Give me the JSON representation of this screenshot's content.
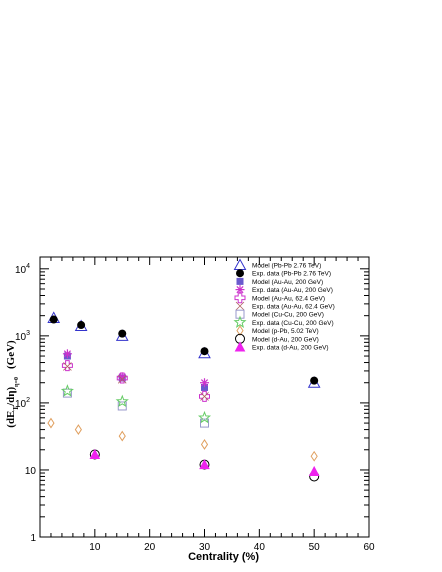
{
  "chart_data": {
    "type": "scatter",
    "xlabel": "Centrality (%)",
    "ylabel": "(dE",
    "ylabel_sub": "T",
    "ylabel_mid": "/dη)",
    "ylabel_sub2": "η=0",
    "ylabel_unit": "(GeV)",
    "xlim": [
      0,
      60
    ],
    "ylim": [
      1,
      15000
    ],
    "yscale": "log",
    "x_ticks": [
      "10",
      "20",
      "30",
      "40",
      "50",
      "60"
    ],
    "y_ticks": [
      {
        "base": "1",
        "exp": ""
      },
      {
        "base": "10",
        "exp": ""
      },
      {
        "base": "10",
        "exp": "2"
      },
      {
        "base": "10",
        "exp": "3"
      },
      {
        "base": "10",
        "exp": "4"
      }
    ],
    "legend_position": "top-right",
    "series": [
      {
        "name": "Model (Pb-Pb 2.76 TeV)",
        "marker": "triangle-open",
        "color": "#3333cc",
        "x": [
          2.5,
          7.5,
          15,
          30,
          50
        ],
        "y": [
          1850,
          1400,
          1000,
          550,
          200
        ]
      },
      {
        "name": "Exp. data (Pb-Pb 2.76 TeV)",
        "marker": "circle-filled",
        "color": "#000000",
        "x": [
          2.5,
          7.5,
          15,
          30,
          50
        ],
        "y": [
          1750,
          1450,
          1080,
          590,
          215
        ]
      },
      {
        "name": "Model (Au-Au, 200 GeV)",
        "marker": "square-filled",
        "color": "#6a5acd",
        "x": [
          5,
          15,
          30
        ],
        "y": [
          500,
          235,
          170
        ]
      },
      {
        "name": "Exp. data (Au-Au, 200 GeV)",
        "marker": "star-x",
        "color": "#cc33cc",
        "x": [
          5,
          15,
          30
        ],
        "y": [
          540,
          245,
          200
        ]
      },
      {
        "name": "Model (Au-Au, 62.4 GeV)",
        "marker": "cross-open",
        "color": "#cc33cc",
        "x": [
          5,
          15,
          30
        ],
        "y": [
          360,
          235,
          125
        ]
      },
      {
        "name": "Exp. data (Au-Au, 62.4 GeV)",
        "marker": "x-thin",
        "color": "#b06060",
        "x": [
          5,
          15,
          30
        ],
        "y": [
          350,
          225,
          125
        ]
      },
      {
        "name": "Model (Cu-Cu, 200 GeV)",
        "marker": "square-open",
        "color": "#9999cc",
        "x": [
          5,
          15,
          30
        ],
        "y": [
          140,
          90,
          50
        ]
      },
      {
        "name": "Exp. data (Cu-Cu, 200 GeV)",
        "marker": "star-open",
        "color": "#66cc66",
        "x": [
          5,
          15,
          30
        ],
        "y": [
          150,
          105,
          60
        ]
      },
      {
        "name": "Model (p-Pb, 5.02 TeV)",
        "marker": "diamond-open",
        "color": "#e0a060",
        "x": [
          2,
          7,
          15,
          30,
          50
        ],
        "y": [
          50,
          40,
          32,
          24,
          16
        ]
      },
      {
        "name": "Model (d-Au, 200 GeV)",
        "marker": "circle-open",
        "color": "#000000",
        "x": [
          10,
          30,
          50
        ],
        "y": [
          17,
          12,
          8
        ]
      },
      {
        "name": "Exp. data (d-Au, 200 GeV)",
        "marker": "triangle-filled",
        "color": "#ee22ee",
        "x": [
          10,
          30,
          50
        ],
        "y": [
          17,
          12,
          9.5
        ]
      }
    ]
  }
}
